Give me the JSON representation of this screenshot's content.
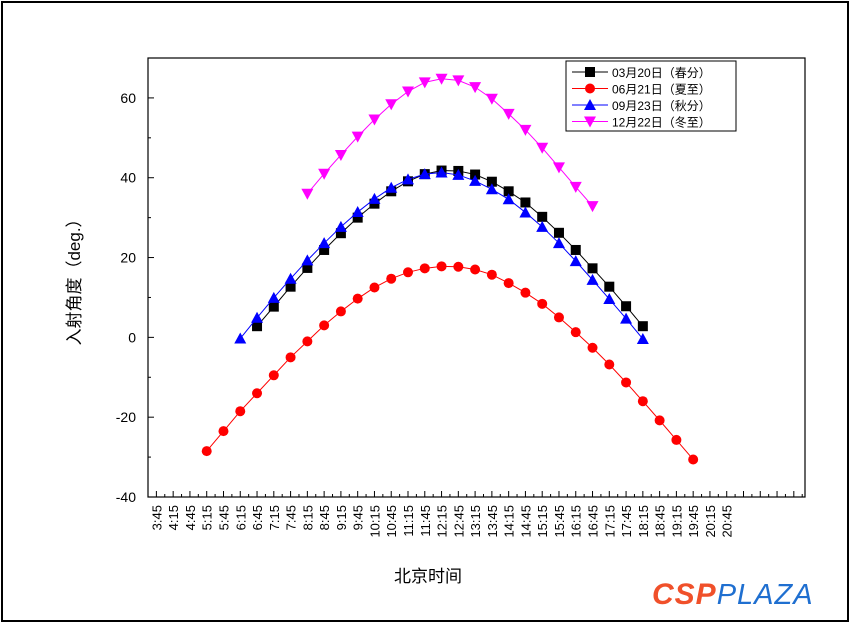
{
  "chart_data": {
    "type": "line",
    "title": "",
    "xlabel": "北京时间",
    "ylabel": "入射角度（deg.）",
    "x_tick_labels": [
      "3:45",
      "4:15",
      "4:45",
      "5:15",
      "5:45",
      "6:15",
      "6:45",
      "7:15",
      "7:45",
      "8:15",
      "8:45",
      "9:15",
      "9:45",
      "10:15",
      "10:45",
      "11:15",
      "11:45",
      "12:15",
      "12:45",
      "13:15",
      "13:45",
      "14:15",
      "14:45",
      "15:15",
      "15:45",
      "16:15",
      "16:45",
      "17:15",
      "17:45",
      "18:15",
      "18:45",
      "19:15",
      "19:45",
      "20:15",
      "20:45"
    ],
    "xlim": [
      "3:30",
      "23:05"
    ],
    "ylim": [
      -40,
      70
    ],
    "y_ticks": [
      -40,
      -20,
      0,
      20,
      40,
      60
    ],
    "legend_position": "top-right",
    "series": [
      {
        "name": "03月20日（春分）",
        "color": "#000000",
        "marker": "square",
        "start": "6:45",
        "step_minutes": 30,
        "values": [
          2.8,
          7.7,
          12.7,
          17.4,
          21.9,
          26.1,
          30,
          33.5,
          36.6,
          39.1,
          40.9,
          41.8,
          41.7,
          40.8,
          39,
          36.6,
          33.8,
          30.2,
          26.2,
          21.9,
          17.3,
          12.7,
          7.8,
          2.8
        ]
      },
      {
        "name": "06月21日（夏至）",
        "color": "#ff0000",
        "marker": "circle",
        "start": "5:15",
        "step_minutes": 30,
        "values": [
          -28.5,
          -23.5,
          -18.5,
          -14,
          -9.5,
          -5,
          -1,
          3,
          6.5,
          9.7,
          12.5,
          14.7,
          16.3,
          17.3,
          17.8,
          17.7,
          17,
          15.7,
          13.6,
          11.2,
          8.4,
          5,
          1.3,
          -2.6,
          -6.8,
          -11.3,
          -16,
          -20.8,
          -25.7,
          -30.6
        ]
      },
      {
        "name": "09月23日（秋分）",
        "color": "#0000ff",
        "marker": "triangle-up",
        "start": "6:15",
        "step_minutes": 30,
        "values": [
          -0.3,
          4.9,
          9.9,
          14.7,
          19.3,
          23.6,
          27.7,
          31.4,
          34.7,
          37.5,
          39.6,
          40.9,
          41.3,
          40.7,
          39.2,
          37.1,
          34.6,
          31.3,
          27.7,
          23.6,
          19.1,
          14.4,
          9.6,
          4.7,
          -0.4
        ]
      },
      {
        "name": "12月22日（冬至）",
        "color": "#ff00ff",
        "marker": "triangle-down",
        "start": "8:15",
        "step_minutes": 30,
        "values": [
          36,
          41,
          45.7,
          50.3,
          54.6,
          58.4,
          61.6,
          63.9,
          64.8,
          64.4,
          62.7,
          59.8,
          56,
          52,
          47.5,
          42.6,
          37.7,
          32.9
        ]
      }
    ]
  },
  "watermark": {
    "part1": "CSP",
    "part2": "PLAZA"
  }
}
